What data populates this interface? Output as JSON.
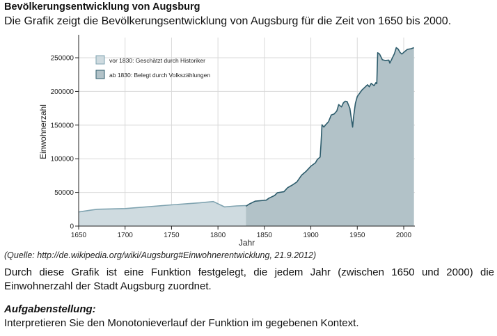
{
  "header": {
    "title": "Bevölkerungsentwicklung von Augsburg",
    "intro": "Die Grafik zeigt die Bevölkerungsentwicklung von Augsburg für die Zeit von 1650 bis 2000."
  },
  "chart_data": {
    "type": "area",
    "xlabel": "Jahr",
    "ylabel": "Einwohnerzahl",
    "xlim": [
      1650,
      2012
    ],
    "ylim": [
      0,
      280000
    ],
    "xticks": [
      1650,
      1700,
      1750,
      1800,
      1850,
      1900,
      1950,
      2000
    ],
    "yticks": [
      0,
      50000,
      100000,
      150000,
      200000,
      250000
    ],
    "grid": true,
    "legend_position": "top-left",
    "series": [
      {
        "name": "vor 1830: Geschätzt durch Historiker",
        "color": "#cfdbe0",
        "line_color": "#7fa3b0",
        "points": [
          [
            1650,
            21000
          ],
          [
            1660,
            23000
          ],
          [
            1670,
            25000
          ],
          [
            1700,
            26000
          ],
          [
            1750,
            31500
          ],
          [
            1780,
            34500
          ],
          [
            1795,
            36500
          ],
          [
            1807,
            28500
          ],
          [
            1820,
            30000
          ],
          [
            1830,
            30500
          ]
        ]
      },
      {
        "name": "ab 1830: Belegt durch Volkszählungen",
        "color": "#b2c2c8",
        "line_color": "#2d5c6c",
        "points": [
          [
            1830,
            29500
          ],
          [
            1834,
            33000
          ],
          [
            1840,
            37000
          ],
          [
            1852,
            38500
          ],
          [
            1855,
            41500
          ],
          [
            1861,
            45500
          ],
          [
            1864,
            49500
          ],
          [
            1871,
            51000
          ],
          [
            1875,
            57000
          ],
          [
            1880,
            61000
          ],
          [
            1885,
            65500
          ],
          [
            1890,
            75500
          ],
          [
            1895,
            81500
          ],
          [
            1900,
            89000
          ],
          [
            1905,
            94000
          ],
          [
            1907,
            99000
          ],
          [
            1910,
            102500
          ],
          [
            1911,
            123000
          ],
          [
            1912,
            150500
          ],
          [
            1914,
            147000
          ],
          [
            1916,
            150500
          ],
          [
            1919,
            155000
          ],
          [
            1922,
            165000
          ],
          [
            1925,
            166500
          ],
          [
            1928,
            171000
          ],
          [
            1930,
            180500
          ],
          [
            1933,
            177000
          ],
          [
            1935,
            183000
          ],
          [
            1937,
            185500
          ],
          [
            1939,
            185000
          ],
          [
            1942,
            175000
          ],
          [
            1945,
            147000
          ],
          [
            1946,
            162000
          ],
          [
            1948,
            182500
          ],
          [
            1950,
            192500
          ],
          [
            1955,
            202000
          ],
          [
            1961,
            210000
          ],
          [
            1963,
            207000
          ],
          [
            1965,
            212000
          ],
          [
            1968,
            208500
          ],
          [
            1970,
            213000
          ],
          [
            1971,
            211500
          ],
          [
            1972,
            257500
          ],
          [
            1974,
            255500
          ],
          [
            1977,
            247000
          ],
          [
            1980,
            246000
          ],
          [
            1984,
            246500
          ],
          [
            1985,
            242000
          ],
          [
            1987,
            247500
          ],
          [
            1990,
            256000
          ],
          [
            1992,
            265000
          ],
          [
            1994,
            263000
          ],
          [
            1996,
            258000
          ],
          [
            1998,
            255500
          ],
          [
            2000,
            258000
          ],
          [
            2004,
            262500
          ],
          [
            2008,
            263500
          ],
          [
            2011,
            265000
          ]
        ]
      }
    ]
  },
  "source": "(Quelle: http://de.wikipedia.org/wiki/Augsburg#Einwohnerentwicklung, 21.9.2012)",
  "description": "Durch diese Grafik ist eine Funktion festgelegt, die jedem Jahr (zwischen 1650 und 2000) die Einwohnerzahl der Stadt Augsburg zuordnet.",
  "task": {
    "heading": "Aufgabenstellung:",
    "text": "Interpretieren Sie den Monotonieverlauf der Funktion im gegebenen Kontext."
  }
}
